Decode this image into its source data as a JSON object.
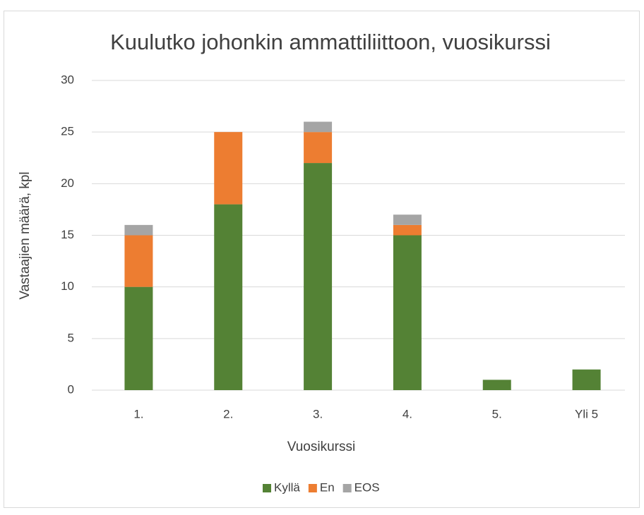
{
  "chart_data": {
    "type": "stacked_bar",
    "title": "Kuulutko johonkin ammattiliittoon, vuosikurssi",
    "x_label": "Vuosikurssi",
    "y_label": "Vastaajien määrä, kpl",
    "categories": [
      "1.",
      "2.",
      "3.",
      "4.",
      "5.",
      "Yli 5"
    ],
    "series": [
      {
        "name": "Kyllä",
        "color": "#548235",
        "values": [
          10,
          18,
          22,
          15,
          1,
          2
        ]
      },
      {
        "name": "En",
        "color": "#ed7d31",
        "values": [
          5,
          7,
          3,
          1,
          0,
          0
        ]
      },
      {
        "name": "EOS",
        "color": "#a5a5a5",
        "values": [
          1,
          0,
          1,
          1,
          0,
          0
        ]
      }
    ],
    "ylim": [
      0,
      30
    ],
    "yticks": [
      0,
      5,
      10,
      15,
      20,
      25,
      30
    ],
    "grid": true,
    "legend": "bottom"
  }
}
